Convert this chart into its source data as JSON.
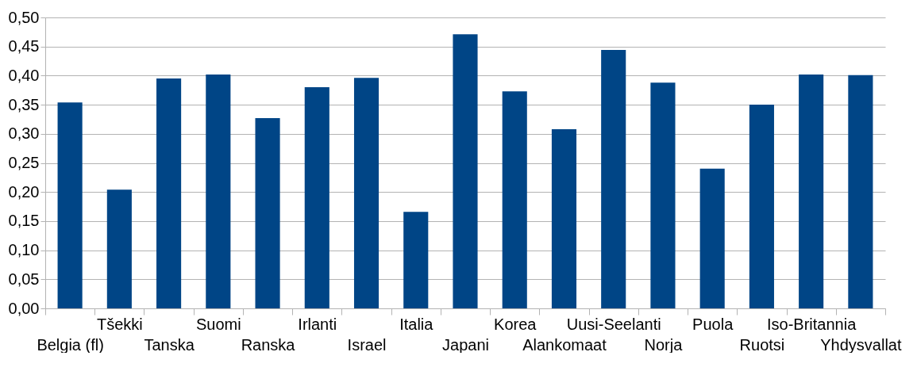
{
  "chart_data": {
    "type": "bar",
    "categories": [
      "Belgia (fl)",
      "Tšekki",
      "Tanska",
      "Suomi",
      "Ranska",
      "Irlanti",
      "Israel",
      "Italia",
      "Japani",
      "Korea",
      "Alankomaat",
      "Uusi-Seelanti",
      "Norja",
      "Puola",
      "Ruotsi",
      "Iso-Britannia",
      "Yhdysvallat"
    ],
    "values": [
      0.354,
      0.204,
      0.395,
      0.402,
      0.327,
      0.38,
      0.396,
      0.166,
      0.471,
      0.373,
      0.308,
      0.444,
      0.388,
      0.24,
      0.35,
      0.402,
      0.401
    ],
    "color": "#004586",
    "ylim": [
      0,
      0.5
    ],
    "yticks": [
      {
        "value": 0,
        "label": "0,00"
      },
      {
        "value": 0.05,
        "label": "0,05"
      },
      {
        "value": 0.1,
        "label": "0,10"
      },
      {
        "value": 0.15,
        "label": "0,15"
      },
      {
        "value": 0.2,
        "label": "0,20"
      },
      {
        "value": 0.25,
        "label": "0,25"
      },
      {
        "value": 0.3,
        "label": "0,30"
      },
      {
        "value": 0.35,
        "label": "0,35"
      },
      {
        "value": 0.4,
        "label": "0,40"
      },
      {
        "value": 0.45,
        "label": "0,45"
      },
      {
        "value": 0.5,
        "label": "0,50"
      }
    ],
    "grid": "y"
  }
}
